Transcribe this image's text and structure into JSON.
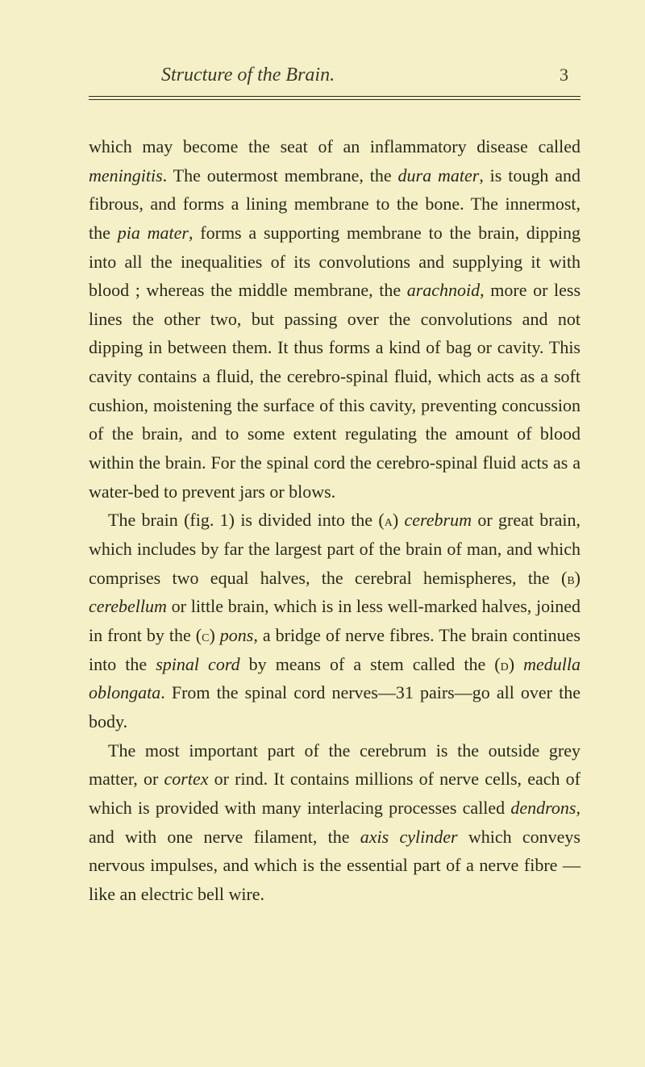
{
  "header": {
    "title": "Structure of the Brain.",
    "page_number": "3"
  },
  "colors": {
    "background": "#f5f0c8",
    "text": "#2a2a1a",
    "header_text": "#3a3a28"
  },
  "typography": {
    "body_font_family": "Georgia, 'Times New Roman', serif",
    "body_fontsize": 22,
    "header_fontsize": 24,
    "line_height": 1.62
  },
  "paragraphs": {
    "p1": {
      "t1": "which may become the seat of an inflammatory disease called ",
      "i1": "meningitis",
      "t2": ". The outermost membrane, the ",
      "i2": "dura mater",
      "t3": ", is tough and fibrous, and forms a lining membrane to the bone. The innermost, the ",
      "i3": "pia mater",
      "t4": ", forms a supporting membrane to the brain, dipping into all the inequalities of its convolutions and supplying it with blood ; whereas the middle membrane, the ",
      "i4": "arachnoid",
      "t5": ", more or less lines the other two, but passing over the convolutions and not dipping in between them. It thus forms a kind of bag or cavity. This cavity contains a fluid, the cerebro-spinal fluid, which acts as a soft cushion, moistening the surface of this cavity, preventing concussion of the brain, and to some extent regulating the amount of blood within the brain. For the spinal cord the cerebro-spinal fluid acts as a water-bed to prevent jars or blows."
    },
    "p2": {
      "t1": "The brain (fig. 1) is divided into the (",
      "sc1": "a",
      "t2": ") ",
      "i1": "cerebrum",
      "t3": " or great brain, which includes by far the largest part of the brain of man, and which comprises two equal halves, the cerebral hemispheres, the (",
      "sc2": "b",
      "t4": ") ",
      "i2": "cerebellum",
      "t5": " or little brain, which is in less well-marked halves, joined in front by the (",
      "sc3": "c",
      "t6": ") ",
      "i3": "pons",
      "t7": ", a bridge of nerve fibres. The brain continues into the ",
      "i4": "spinal cord",
      "t8": " by means of a stem called the (",
      "sc4": "d",
      "t9": ") ",
      "i5": "medulla oblongata",
      "t10": ". From the spinal cord nerves—31 pairs—go all over the body."
    },
    "p3": {
      "t1": "The most important part of the cerebrum is the outside grey matter, or ",
      "i1": "cortex",
      "t2": " or rind. It contains millions of nerve cells, each of which is provided with many interlacing processes called ",
      "i2": "dendrons",
      "t3": ", and with one nerve filament, the ",
      "i3": "axis cylinder",
      "t4": " which conveys nervous impulses, and which is the essential part of a nerve fibre —like an electric bell wire."
    }
  }
}
